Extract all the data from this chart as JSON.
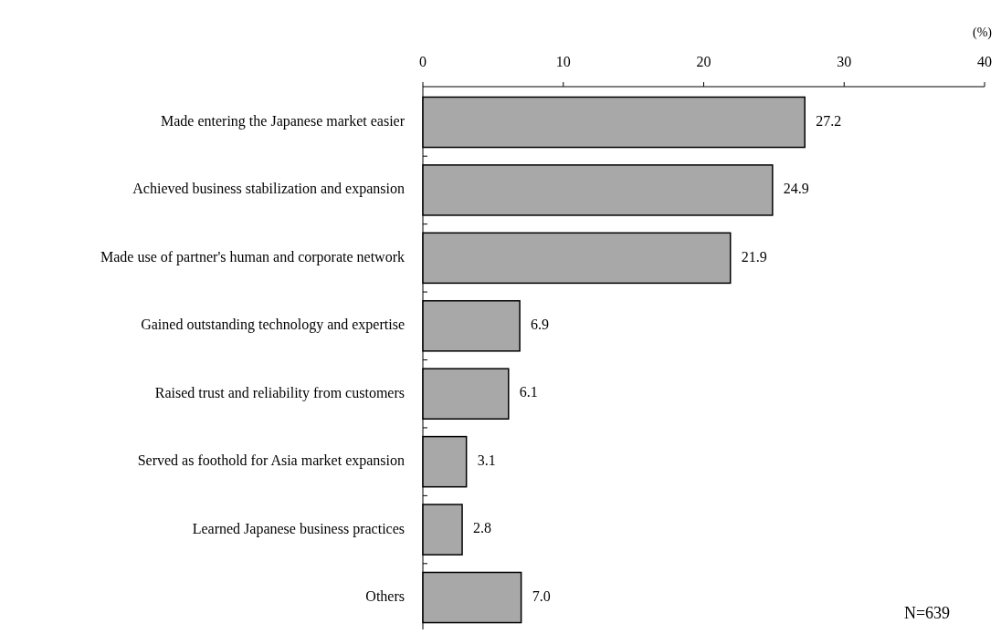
{
  "chart_data": {
    "type": "bar",
    "orientation": "horizontal",
    "xlabel": "(%)",
    "categories": [
      "Made entering  the Japanese market easier",
      "Achieved business stabilization  and expansion",
      "Made use of partner's human and corporate network",
      "Gained outstanding technology and expertise",
      "Raised trust and reliability  from customers",
      "Served as foothold for Asia market expansion",
      "Learned Japanese business practices",
      "Others"
    ],
    "values": [
      27.2,
      24.9,
      21.9,
      6.9,
      6.1,
      3.1,
      2.8,
      7.0
    ],
    "value_labels": [
      "27.2",
      "24.9",
      "21.9",
      "6.9",
      "6.1",
      "3.1",
      "2.8",
      "7.0"
    ],
    "color": "#a8a8a8",
    "xlim": [
      0,
      40
    ],
    "xticks": [
      0,
      10,
      20,
      30,
      40
    ],
    "annotations": [
      "N=639"
    ]
  }
}
